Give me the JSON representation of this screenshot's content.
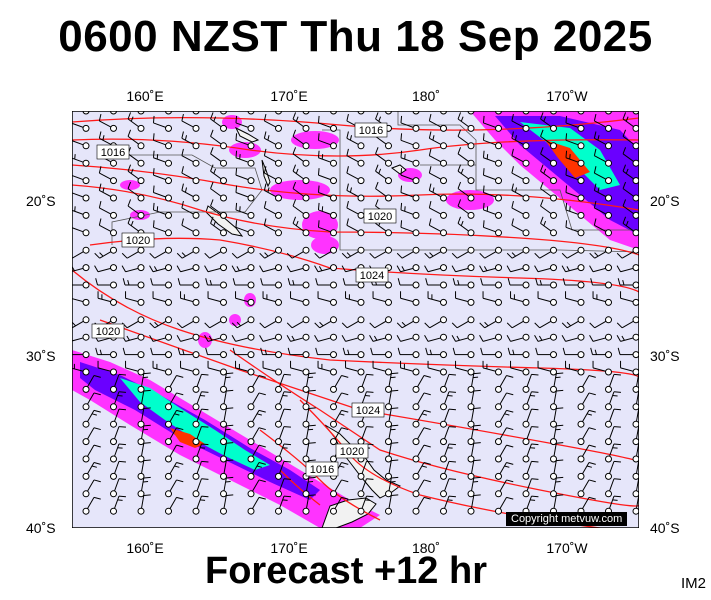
{
  "title": "0600 NZST Thu 18 Sep 2025",
  "footer": "Forecast +12 hr",
  "image_id": "IM2",
  "copyright": "Copyright metvuw.com",
  "axes": {
    "top_lon": [
      "160˚E",
      "170˚E",
      "180˚",
      "170˚W"
    ],
    "bottom_lon": [
      "160˚E",
      "170˚E",
      "180˚",
      "170˚W"
    ],
    "left_lat": [
      "20˚S",
      "30˚S",
      "40˚S"
    ],
    "right_lat": [
      "20˚S",
      "30˚S",
      "40˚S"
    ]
  },
  "isobar_labels": [
    "1016",
    "1016",
    "1020",
    "1020",
    "1024",
    "1020",
    "1024",
    "1020",
    "1016"
  ],
  "colors": {
    "ocean": "#e6e6fa",
    "isobar": "#ff1a1a",
    "land": "#f2f2f2",
    "rain_light": "#ff33ff",
    "rain_mid": "#6a00ff",
    "rain_heavy": "#00ffcc",
    "rain_peak": "#ff3300"
  }
}
